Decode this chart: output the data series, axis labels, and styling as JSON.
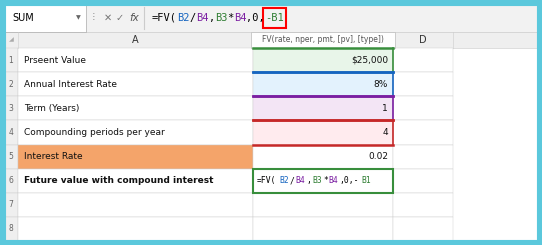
{
  "outer_border_color": "#5BC8DC",
  "formula_bar": {
    "name_box": "SUM",
    "formula_parts": [
      {
        "text": "=FV(",
        "color": "#000000"
      },
      {
        "text": "B2",
        "color": "#1565C0"
      },
      {
        "text": "/",
        "color": "#000000"
      },
      {
        "text": "B4",
        "color": "#7B1FA2"
      },
      {
        "text": ",",
        "color": "#000000"
      },
      {
        "text": "B3",
        "color": "#2E7D32"
      },
      {
        "text": "*",
        "color": "#000000"
      },
      {
        "text": "B4",
        "color": "#7B1FA2"
      },
      {
        "text": ",0,",
        "color": "#000000"
      },
      {
        "text": "-B1",
        "color": "#2E7D32"
      }
    ],
    "highlight_text": "-B1",
    "highlight_color": "#FF0000"
  },
  "tooltip": "FV(rate, nper, pmt, [pv], [type])",
  "row_data": [
    {
      "row": "1",
      "label": "Prseent Value",
      "value": "$25,000",
      "label_bg": "#FFFFFF",
      "value_bg": "#E8F5E9",
      "top_color": "#388E3C",
      "bot_color": "#1565C0"
    },
    {
      "row": "2",
      "label": "Annual Interest Rate",
      "value": "8%",
      "label_bg": "#FFFFFF",
      "value_bg": "#E3F2FD",
      "top_color": "#1565C0",
      "bot_color": "#7B1FA2"
    },
    {
      "row": "3",
      "label": "Term (Years)",
      "value": "1",
      "label_bg": "#FFFFFF",
      "value_bg": "#F3E5F5",
      "top_color": "#7B1FA2",
      "bot_color": "#C62828"
    },
    {
      "row": "4",
      "label": "Compounding periods per year",
      "value": "4",
      "label_bg": "#FFFFFF",
      "value_bg": "#FFEBEE",
      "top_color": "#C62828",
      "bot_color": "#C62828"
    },
    {
      "row": "5",
      "label": "Interest Rate",
      "value": "0.02",
      "label_bg": "#F4A46A",
      "value_bg": "#FFFFFF",
      "top_color": null,
      "bot_color": null
    },
    {
      "row": "6",
      "label": "Future value with compound interest",
      "value": "=FV(B2/B4,B3*B4,0,-B1",
      "label_bg": "#FFFFFF",
      "value_bg": "#FFFFFF",
      "top_color": null,
      "bot_color": null,
      "bold": true
    }
  ],
  "empty_rows": [
    "7",
    "8"
  ],
  "formula_row6_parts": [
    {
      "text": "=FV(",
      "color": "#000000"
    },
    {
      "text": "B2",
      "color": "#1565C0"
    },
    {
      "text": "/",
      "color": "#000000"
    },
    {
      "text": "B4",
      "color": "#7B1FA2"
    },
    {
      "text": ",",
      "color": "#000000"
    },
    {
      "text": "B3",
      "color": "#2E7D32"
    },
    {
      "text": "*",
      "color": "#000000"
    },
    {
      "text": "B4",
      "color": "#7B1FA2"
    },
    {
      "text": ",0,-",
      "color": "#000000"
    },
    {
      "text": "B1",
      "color": "#2E7D32"
    }
  ]
}
